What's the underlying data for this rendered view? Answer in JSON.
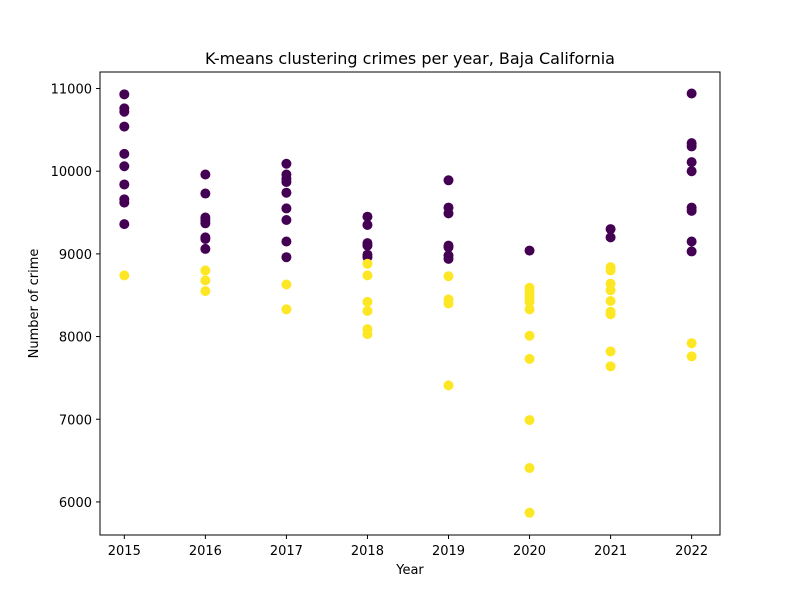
{
  "chart_data": {
    "type": "scatter",
    "title": "K-means clustering crimes per year, Baja California",
    "xlabel": "Year",
    "ylabel": "Number of crime",
    "xlim": [
      2014.7,
      2022.35
    ],
    "ylim": [
      5600,
      11200
    ],
    "x_ticks": [
      2015,
      2016,
      2017,
      2018,
      2019,
      2020,
      2021,
      2022
    ],
    "y_ticks": [
      6000,
      7000,
      8000,
      9000,
      10000,
      11000
    ],
    "grid": false,
    "legend": "none",
    "series": [
      {
        "color": "#440154",
        "points": [
          [
            2015,
            10930
          ],
          [
            2015,
            10760
          ],
          [
            2015,
            10720
          ],
          [
            2015,
            10540
          ],
          [
            2015,
            10210
          ],
          [
            2015,
            10060
          ],
          [
            2015,
            9840
          ],
          [
            2015,
            9660
          ],
          [
            2015,
            9620
          ],
          [
            2015,
            9360
          ],
          [
            2016,
            9960
          ],
          [
            2016,
            9730
          ],
          [
            2016,
            9440
          ],
          [
            2016,
            9410
          ],
          [
            2016,
            9370
          ],
          [
            2016,
            9200
          ],
          [
            2016,
            9180
          ],
          [
            2016,
            9060
          ],
          [
            2017,
            10090
          ],
          [
            2017,
            9960
          ],
          [
            2017,
            9910
          ],
          [
            2017,
            9870
          ],
          [
            2017,
            9740
          ],
          [
            2017,
            9550
          ],
          [
            2017,
            9410
          ],
          [
            2017,
            9150
          ],
          [
            2017,
            8960
          ],
          [
            2018,
            9450
          ],
          [
            2018,
            9350
          ],
          [
            2018,
            9130
          ],
          [
            2018,
            9100
          ],
          [
            2018,
            8990
          ],
          [
            2018,
            8960
          ],
          [
            2019,
            9890
          ],
          [
            2019,
            9560
          ],
          [
            2019,
            9490
          ],
          [
            2019,
            9100
          ],
          [
            2019,
            9080
          ],
          [
            2019,
            8980
          ],
          [
            2019,
            8940
          ],
          [
            2020,
            9040
          ],
          [
            2021,
            9300
          ],
          [
            2021,
            9200
          ],
          [
            2022,
            10940
          ],
          [
            2022,
            10340
          ],
          [
            2022,
            10300
          ],
          [
            2022,
            10110
          ],
          [
            2022,
            10000
          ],
          [
            2022,
            9560
          ],
          [
            2022,
            9520
          ],
          [
            2022,
            9150
          ],
          [
            2022,
            9030
          ]
        ]
      },
      {
        "color": "#fde725",
        "points": [
          [
            2015,
            8740
          ],
          [
            2016,
            8800
          ],
          [
            2016,
            8680
          ],
          [
            2016,
            8550
          ],
          [
            2017,
            8630
          ],
          [
            2017,
            8330
          ],
          [
            2018,
            8880
          ],
          [
            2018,
            8740
          ],
          [
            2018,
            8420
          ],
          [
            2018,
            8310
          ],
          [
            2018,
            8090
          ],
          [
            2018,
            8030
          ],
          [
            2019,
            8730
          ],
          [
            2019,
            8450
          ],
          [
            2019,
            8400
          ],
          [
            2019,
            7410
          ],
          [
            2020,
            8590
          ],
          [
            2020,
            8550
          ],
          [
            2020,
            8500
          ],
          [
            2020,
            8460
          ],
          [
            2020,
            8420
          ],
          [
            2020,
            8330
          ],
          [
            2020,
            8010
          ],
          [
            2020,
            7730
          ],
          [
            2020,
            6990
          ],
          [
            2020,
            6410
          ],
          [
            2020,
            5870
          ],
          [
            2021,
            8840
          ],
          [
            2021,
            8800
          ],
          [
            2021,
            8640
          ],
          [
            2021,
            8560
          ],
          [
            2021,
            8430
          ],
          [
            2021,
            8300
          ],
          [
            2021,
            8270
          ],
          [
            2021,
            7820
          ],
          [
            2021,
            7640
          ],
          [
            2022,
            7920
          ],
          [
            2022,
            7760
          ]
        ]
      }
    ]
  }
}
